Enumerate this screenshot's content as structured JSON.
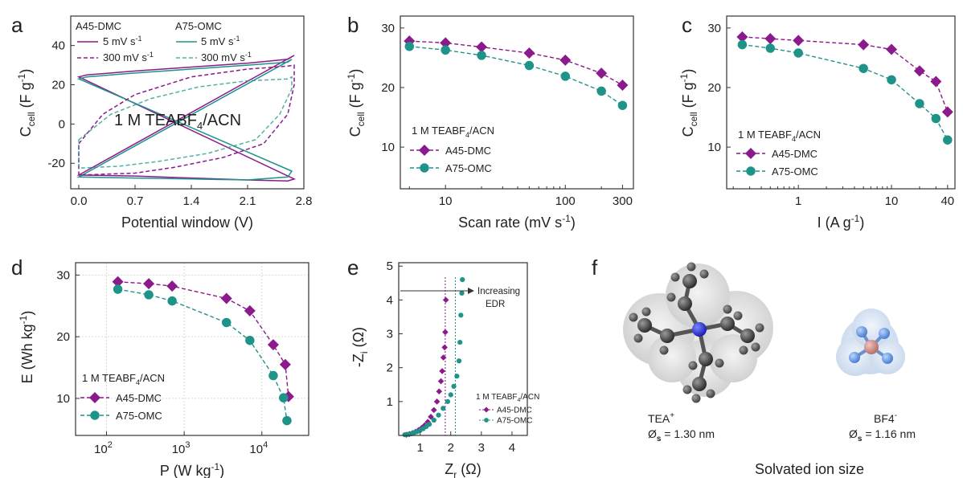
{
  "colors": {
    "a45": "#8B1A8C",
    "a75": "#1E9488",
    "axis": "#333333",
    "grid": "#d9d9d9"
  },
  "chart_data": [
    {
      "panel": "a",
      "type": "line",
      "xlabel": "Potential window (V)",
      "ylabel_main": "C",
      "ylabel_sub": "cell",
      "ylabel_unit": "(F g",
      "ylabel_sup": "-1",
      "ylabel_end": ")",
      "xlim": [
        -0.1,
        2.8
      ],
      "ylim": [
        -33,
        55
      ],
      "xticks": [
        "0.0",
        "0.7",
        "1.4",
        "2.1",
        "2.8"
      ],
      "yticks": [
        "-20",
        "0",
        "20",
        "40"
      ],
      "annotation": "1 M TEABF",
      "annotation_sub": "4",
      "annotation_end": "/ACN",
      "legend_heads": [
        "A45-DMC",
        "A75-OMC"
      ],
      "legend_rows": [
        "5 mV s",
        "300 mV s"
      ],
      "legend_sup": "-1",
      "series": [
        {
          "name": "A45-DMC 5 mV s-1",
          "upper": [
            [
              0.0,
              24
            ],
            [
              0.1,
              25
            ],
            [
              0.7,
              27
            ],
            [
              1.4,
              29
            ],
            [
              2.1,
              31
            ],
            [
              2.6,
              33
            ],
            [
              2.68,
              35
            ]
          ],
          "lower": [
            [
              0.0,
              -26
            ],
            [
              0.7,
              -26.5
            ],
            [
              1.4,
              -27.5
            ],
            [
              2.1,
              -28.5
            ],
            [
              2.6,
              -29
            ],
            [
              2.68,
              -28
            ]
          ]
        },
        {
          "name": "A75-OMC 5 mV s-1",
          "upper": [
            [
              0.0,
              23
            ],
            [
              0.1,
              24
            ],
            [
              0.7,
              26
            ],
            [
              1.4,
              28
            ],
            [
              2.1,
              30
            ],
            [
              2.6,
              31.5
            ],
            [
              2.65,
              33
            ]
          ],
          "lower": [
            [
              0.0,
              -27
            ],
            [
              0.7,
              -27.5
            ],
            [
              1.4,
              -28
            ],
            [
              2.1,
              -28.5
            ],
            [
              2.6,
              -27
            ],
            [
              2.65,
              -24
            ]
          ]
        },
        {
          "name": "A45-DMC 300 mV s-1",
          "upper": [
            [
              0.0,
              -10
            ],
            [
              0.3,
              5
            ],
            [
              0.7,
              15
            ],
            [
              1.4,
              24
            ],
            [
              2.1,
              28
            ],
            [
              2.6,
              29.5
            ],
            [
              2.68,
              30
            ]
          ],
          "lower": [
            [
              2.68,
              20
            ],
            [
              2.6,
              5
            ],
            [
              2.3,
              -10
            ],
            [
              1.8,
              -17
            ],
            [
              1.2,
              -22
            ],
            [
              0.7,
              -25
            ],
            [
              0.0,
              -26
            ]
          ]
        },
        {
          "name": "A75-OMC 300 mV s-1",
          "upper": [
            [
              0.0,
              -8
            ],
            [
              0.4,
              5
            ],
            [
              0.9,
              13
            ],
            [
              1.5,
              19
            ],
            [
              2.1,
              22
            ],
            [
              2.6,
              23
            ],
            [
              2.65,
              24
            ]
          ],
          "lower": [
            [
              2.65,
              18
            ],
            [
              2.5,
              5
            ],
            [
              2.2,
              -8
            ],
            [
              1.6,
              -15
            ],
            [
              1.0,
              -19
            ],
            [
              0.5,
              -21.5
            ],
            [
              0.0,
              -22.5
            ]
          ]
        }
      ]
    },
    {
      "panel": "b",
      "type": "line",
      "xscale": "log",
      "xlim": [
        4.2,
        370
      ],
      "ylim": [
        3,
        32
      ],
      "xlabel_main": "Scan rate (mV s",
      "xlabel_sup": "-1",
      "xlabel_end": ")",
      "xticks": [
        "10",
        "100",
        "300"
      ],
      "yticks": [
        "10",
        "20",
        "30"
      ],
      "legend_title": "1 M TEABF",
      "legend_title_sub": "4",
      "legend_title_end": "/ACN",
      "x": [
        5,
        10,
        20,
        50,
        100,
        200,
        300
      ],
      "series": [
        {
          "name": "A45-DMC",
          "marker": "diamond",
          "values": [
            27.8,
            27.5,
            26.8,
            25.8,
            24.6,
            22.4,
            20.4
          ]
        },
        {
          "name": "A75-OMC",
          "marker": "circle",
          "values": [
            26.9,
            26.3,
            25.4,
            23.7,
            21.9,
            19.4,
            17.0
          ]
        }
      ]
    },
    {
      "panel": "c",
      "type": "line",
      "xscale": "log",
      "xlim": [
        0.17,
        48
      ],
      "ylim": [
        3,
        32
      ],
      "xlabel_main": "I (A g",
      "xlabel_sup": "-1",
      "xlabel_end": ")",
      "xticks": [
        "1",
        "10",
        "40"
      ],
      "yticks": [
        "10",
        "20",
        "30"
      ],
      "legend_title": "1 M TEABF",
      "legend_title_sub": "4",
      "legend_title_end": "/ACN",
      "x": [
        0.25,
        0.5,
        1,
        5,
        10,
        20,
        30,
        40
      ],
      "series": [
        {
          "name": "A45-DMC",
          "marker": "diamond",
          "values": [
            28.5,
            28.2,
            27.9,
            27.2,
            26.4,
            22.8,
            21.0,
            15.9
          ]
        },
        {
          "name": "A75-OMC",
          "marker": "circle",
          "values": [
            27.2,
            26.6,
            25.8,
            23.2,
            21.3,
            17.3,
            14.8,
            11.2
          ]
        }
      ]
    },
    {
      "panel": "d",
      "type": "line",
      "xscale": "log",
      "yscale": "linear",
      "xlim": [
        40,
        40000
      ],
      "ylim": [
        4,
        32
      ],
      "xlabel_main": "P (W kg",
      "xlabel_sup": "-1",
      "xlabel_end": ")",
      "ylabel_main": "E (Wh kg",
      "ylabel_sup": "-1",
      "ylabel_end": ")",
      "xticks_base": "10",
      "xticks_exp": [
        "2",
        "3",
        "4"
      ],
      "yticks": [
        "10",
        "20",
        "30"
      ],
      "grid": true,
      "legend_title": "1 M TEABF",
      "legend_title_sub": "4",
      "legend_title_end": "/ACN",
      "series": [
        {
          "name": "A45-DMC",
          "marker": "diamond",
          "x": [
            140,
            350,
            700,
            3500,
            7000,
            14000,
            20000,
            22000
          ],
          "values": [
            28.9,
            28.6,
            28.2,
            26.2,
            24.2,
            18.7,
            15.5,
            10.3
          ]
        },
        {
          "name": "A75-OMC",
          "marker": "circle",
          "x": [
            140,
            350,
            700,
            3500,
            7000,
            14000,
            19000,
            21000
          ],
          "values": [
            27.7,
            26.8,
            25.8,
            22.3,
            19.4,
            13.7,
            10.1,
            6.4
          ]
        }
      ]
    },
    {
      "panel": "e",
      "type": "scatter",
      "xlim": [
        0.3,
        4.5
      ],
      "ylim": [
        0,
        5.1
      ],
      "xlabel_main": "Z",
      "xlabel_sub": "r",
      "xlabel_end": " (Ω)",
      "ylabel_main": "-Z",
      "ylabel_sub": "i",
      "ylabel_end": " (Ω)",
      "xticks": [
        "1",
        "2",
        "3",
        "4"
      ],
      "yticks": [
        "1",
        "2",
        "3",
        "4",
        "5"
      ],
      "annotation": [
        "Increasing",
        "EDR"
      ],
      "legend_title": "1 M TEABF",
      "legend_title_sub": "4",
      "legend_title_end": "/ACN",
      "series": [
        {
          "name": "A45-DMC",
          "marker": "diamond",
          "x": [
            0.55,
            0.65,
            0.75,
            0.85,
            0.95,
            1.05,
            1.15,
            1.25,
            1.35,
            1.45,
            1.55,
            1.62,
            1.68,
            1.72,
            1.76,
            1.8,
            1.82,
            1.84
          ],
          "values": [
            0.02,
            0.04,
            0.07,
            0.11,
            0.16,
            0.22,
            0.3,
            0.4,
            0.55,
            0.75,
            1.0,
            1.3,
            1.6,
            1.9,
            2.3,
            2.6,
            3.05,
            4.0
          ]
        },
        {
          "name": "A75-OMC",
          "marker": "circle",
          "x": [
            0.5,
            0.6,
            0.7,
            0.8,
            0.9,
            1.0,
            1.1,
            1.2,
            1.3,
            1.45,
            1.6,
            1.75,
            1.9,
            2.0,
            2.1,
            2.2,
            2.27,
            2.3,
            2.33,
            2.36,
            2.38
          ],
          "values": [
            0.02,
            0.03,
            0.05,
            0.08,
            0.11,
            0.15,
            0.2,
            0.26,
            0.33,
            0.45,
            0.6,
            0.8,
            1.0,
            1.2,
            1.45,
            1.75,
            2.2,
            2.75,
            3.55,
            4.2,
            4.6
          ]
        }
      ],
      "guide_lines_x": [
        1.82,
        2.15
      ]
    },
    {
      "panel": "f",
      "type": "other",
      "ion1_name": "TEA",
      "ion1_sup": "+",
      "ion1_size_symbol": "Ø",
      "ion1_size_sub": "s",
      "ion1_size": " = 1.30 nm",
      "ion2_name": "BF4",
      "ion2_sup": "-",
      "ion2_size_symbol": "Ø",
      "ion2_size_sub": "s",
      "ion2_size": " = 1.16 nm",
      "caption": "Solvated ion size"
    }
  ]
}
